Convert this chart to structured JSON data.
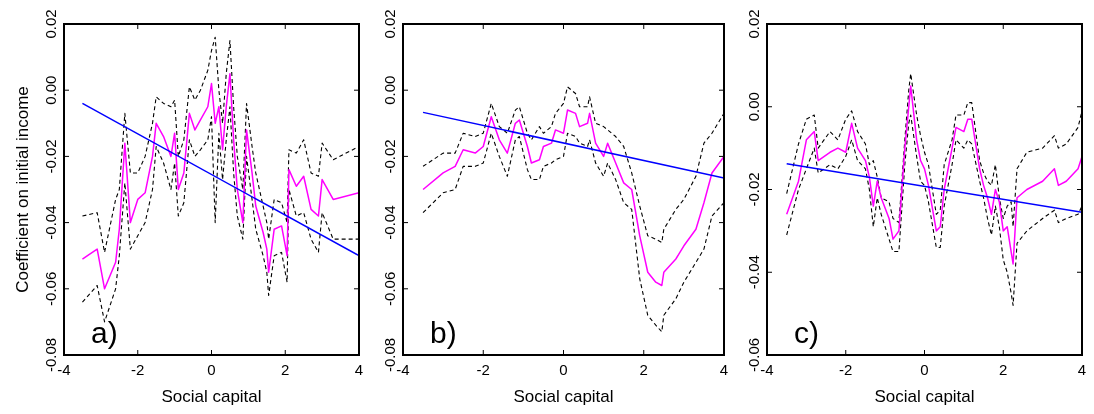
{
  "chart_data": [
    {
      "type": "line",
      "xlabel": "Social capital",
      "ylabel": "Coefficient on initial income",
      "xlim": [
        -4,
        4
      ],
      "xticks": [
        -4,
        -2,
        0,
        2,
        4
      ],
      "ylim": [
        -0.08,
        0.02
      ],
      "yticks": [
        {
          "value": -0.08,
          "label": "-0.08"
        },
        {
          "value": -0.06,
          "label": "-0.06"
        },
        {
          "value": -0.04,
          "label": "-0.04"
        },
        {
          "value": -0.02,
          "label": "-0.02"
        },
        {
          "value": 0,
          "label": "0.00"
        },
        {
          "value": 0.02,
          "label": "0.02"
        }
      ],
      "annotations": [
        "a)"
      ],
      "series": [
        {
          "color": "#000000",
          "line_style": "dashed",
          "x": [
            -3.5,
            -3.1,
            -2.9,
            -2.6,
            -2.5,
            -2.35,
            -2.2,
            -2.0,
            -1.8,
            -1.6,
            -1.5,
            -1.3,
            -1.1,
            -1.0,
            -0.9,
            -0.75,
            -0.6,
            -0.45,
            -0.3,
            -0.1,
            0.0,
            0.1,
            0.2,
            0.3,
            0.4,
            0.5,
            0.6,
            0.7,
            0.85,
            0.95,
            1.1,
            1.2,
            1.4,
            1.5,
            1.55,
            1.7,
            1.9,
            2.05,
            2.1,
            2.3,
            2.5,
            2.7,
            2.9,
            3.0,
            3.3,
            4.0
          ],
          "values": [
            -0.038,
            -0.037,
            -0.049,
            -0.033,
            -0.03,
            -0.007,
            -0.025,
            -0.025,
            -0.02,
            -0.01,
            -0.002,
            -0.004,
            -0.005,
            -0.003,
            -0.02,
            -0.015,
            0.001,
            -0.003,
            0.0,
            0.006,
            0.012,
            0.016,
            0.0,
            -0.01,
            0.005,
            0.015,
            -0.005,
            -0.02,
            -0.03,
            -0.004,
            -0.017,
            -0.025,
            -0.035,
            -0.04,
            -0.045,
            -0.033,
            -0.034,
            -0.04,
            -0.018,
            -0.019,
            -0.015,
            -0.025,
            -0.026,
            -0.016,
            -0.021,
            -0.017
          ]
        },
        {
          "color": "#000000",
          "line_style": "dashed",
          "x": [
            -3.5,
            -3.1,
            -2.9,
            -2.6,
            -2.5,
            -2.35,
            -2.2,
            -2.0,
            -1.8,
            -1.6,
            -1.5,
            -1.3,
            -1.1,
            -1.0,
            -0.9,
            -0.75,
            -0.6,
            -0.45,
            -0.3,
            -0.1,
            0.0,
            0.1,
            0.2,
            0.3,
            0.4,
            0.5,
            0.6,
            0.7,
            0.85,
            0.95,
            1.1,
            1.2,
            1.4,
            1.5,
            1.55,
            1.7,
            1.9,
            2.05,
            2.1,
            2.3,
            2.5,
            2.7,
            2.9,
            3.0,
            3.3,
            4.0
          ],
          "values": [
            -0.064,
            -0.059,
            -0.07,
            -0.06,
            -0.05,
            -0.028,
            -0.048,
            -0.044,
            -0.04,
            -0.03,
            -0.017,
            -0.022,
            -0.03,
            -0.022,
            -0.038,
            -0.034,
            -0.015,
            -0.02,
            -0.018,
            -0.015,
            -0.008,
            -0.04,
            -0.013,
            -0.027,
            -0.015,
            -0.005,
            -0.025,
            -0.038,
            -0.045,
            -0.02,
            -0.033,
            -0.042,
            -0.05,
            -0.055,
            -0.062,
            -0.05,
            -0.049,
            -0.058,
            -0.03,
            -0.038,
            -0.037,
            -0.045,
            -0.049,
            -0.037,
            -0.045,
            -0.045
          ]
        },
        {
          "color": "#ff00ff",
          "line_style": "solid",
          "x": [
            -3.5,
            -3.1,
            -2.9,
            -2.6,
            -2.5,
            -2.35,
            -2.2,
            -2.0,
            -1.8,
            -1.6,
            -1.5,
            -1.3,
            -1.1,
            -1.0,
            -0.9,
            -0.75,
            -0.6,
            -0.45,
            -0.3,
            -0.1,
            0.0,
            0.1,
            0.2,
            0.3,
            0.4,
            0.5,
            0.6,
            0.7,
            0.85,
            0.95,
            1.1,
            1.2,
            1.4,
            1.5,
            1.55,
            1.7,
            1.9,
            2.05,
            2.1,
            2.3,
            2.5,
            2.7,
            2.9,
            3.0,
            3.3,
            4.0
          ],
          "values": [
            -0.051,
            -0.048,
            -0.06,
            -0.052,
            -0.042,
            -0.016,
            -0.04,
            -0.033,
            -0.031,
            -0.02,
            -0.01,
            -0.014,
            -0.02,
            -0.013,
            -0.03,
            -0.025,
            -0.007,
            -0.012,
            -0.009,
            -0.005,
            0.002,
            -0.01,
            -0.005,
            -0.018,
            -0.005,
            0.005,
            -0.015,
            -0.03,
            -0.04,
            -0.012,
            -0.025,
            -0.035,
            -0.043,
            -0.048,
            -0.055,
            -0.042,
            -0.041,
            -0.05,
            -0.024,
            -0.029,
            -0.026,
            -0.036,
            -0.038,
            -0.027,
            -0.033,
            -0.031
          ]
        },
        {
          "color": "#0000ff",
          "line_style": "solid",
          "x": [
            -3.5,
            4
          ],
          "values": [
            -0.004,
            -0.05
          ]
        }
      ]
    },
    {
      "type": "line",
      "xlabel": "Social capital",
      "xlim": [
        -4,
        4
      ],
      "xticks": [
        -4,
        -2,
        0,
        2,
        4
      ],
      "ylim": [
        -0.08,
        0.02
      ],
      "yticks": [
        {
          "value": -0.08,
          "label": "-0.08"
        },
        {
          "value": -0.06,
          "label": "-0.06"
        },
        {
          "value": -0.04,
          "label": "-0.04"
        },
        {
          "value": -0.02,
          "label": "-0.02"
        },
        {
          "value": 0,
          "label": "0.00"
        },
        {
          "value": 0.02,
          "label": "0.02"
        }
      ],
      "annotations": [
        "b)"
      ],
      "series": [
        {
          "color": "#000000",
          "line_style": "dashed",
          "x": [
            -3.5,
            -3.0,
            -2.7,
            -2.5,
            -2.2,
            -2.0,
            -1.8,
            -1.6,
            -1.4,
            -1.2,
            -1.1,
            -0.9,
            -0.8,
            -0.6,
            -0.5,
            -0.3,
            -0.2,
            0.0,
            0.1,
            0.3,
            0.4,
            0.6,
            0.65,
            0.8,
            1.0,
            1.1,
            1.3,
            1.5,
            1.7,
            1.9,
            2.1,
            2.3,
            2.45,
            2.5,
            2.8,
            3.0,
            3.3,
            3.5,
            3.7,
            4.0
          ],
          "values": [
            -0.023,
            -0.019,
            -0.019,
            -0.013,
            -0.014,
            -0.013,
            -0.004,
            -0.011,
            -0.013,
            -0.006,
            -0.005,
            -0.013,
            -0.015,
            -0.011,
            -0.013,
            -0.011,
            -0.007,
            -0.004,
            0.001,
            -0.001,
            -0.005,
            -0.005,
            -0.002,
            -0.01,
            -0.011,
            -0.012,
            -0.014,
            -0.017,
            -0.025,
            -0.035,
            -0.044,
            -0.045,
            -0.046,
            -0.042,
            -0.036,
            -0.033,
            -0.026,
            -0.016,
            -0.013,
            -0.007
          ]
        },
        {
          "color": "#000000",
          "line_style": "dashed",
          "x": [
            -3.5,
            -3.0,
            -2.7,
            -2.5,
            -2.2,
            -2.0,
            -1.8,
            -1.6,
            -1.4,
            -1.2,
            -1.1,
            -0.9,
            -0.8,
            -0.6,
            -0.5,
            -0.3,
            -0.2,
            0.0,
            0.1,
            0.3,
            0.4,
            0.6,
            0.65,
            0.8,
            1.0,
            1.1,
            1.3,
            1.5,
            1.7,
            1.9,
            2.1,
            2.3,
            2.45,
            2.5,
            2.8,
            3.0,
            3.3,
            3.5,
            3.7,
            4.0
          ],
          "values": [
            -0.037,
            -0.031,
            -0.03,
            -0.023,
            -0.023,
            -0.022,
            -0.013,
            -0.02,
            -0.026,
            -0.015,
            -0.014,
            -0.024,
            -0.027,
            -0.027,
            -0.023,
            -0.022,
            -0.021,
            -0.02,
            -0.013,
            -0.014,
            -0.016,
            -0.017,
            -0.015,
            -0.022,
            -0.026,
            -0.022,
            -0.027,
            -0.034,
            -0.036,
            -0.057,
            -0.068,
            -0.071,
            -0.073,
            -0.068,
            -0.063,
            -0.058,
            -0.052,
            -0.048,
            -0.038,
            -0.034
          ]
        },
        {
          "color": "#ff00ff",
          "line_style": "solid",
          "x": [
            -3.5,
            -3.0,
            -2.7,
            -2.5,
            -2.2,
            -2.0,
            -1.8,
            -1.6,
            -1.4,
            -1.2,
            -1.1,
            -0.9,
            -0.8,
            -0.6,
            -0.5,
            -0.3,
            -0.2,
            0.0,
            0.1,
            0.3,
            0.4,
            0.6,
            0.65,
            0.8,
            1.0,
            1.1,
            1.3,
            1.5,
            1.7,
            1.9,
            2.1,
            2.3,
            2.45,
            2.5,
            2.8,
            3.0,
            3.3,
            3.5,
            3.7,
            4.0
          ],
          "values": [
            -0.03,
            -0.025,
            -0.023,
            -0.018,
            -0.019,
            -0.017,
            -0.008,
            -0.015,
            -0.019,
            -0.01,
            -0.009,
            -0.017,
            -0.022,
            -0.021,
            -0.017,
            -0.016,
            -0.012,
            -0.013,
            -0.006,
            -0.007,
            -0.011,
            -0.01,
            -0.007,
            -0.016,
            -0.02,
            -0.016,
            -0.022,
            -0.028,
            -0.03,
            -0.044,
            -0.055,
            -0.058,
            -0.059,
            -0.055,
            -0.051,
            -0.047,
            -0.042,
            -0.034,
            -0.025,
            -0.02
          ]
        },
        {
          "color": "#0000ff",
          "line_style": "solid",
          "x": [
            -3.5,
            4
          ],
          "values": [
            -0.0067,
            -0.0265
          ]
        }
      ]
    },
    {
      "type": "line",
      "xlabel": "Social capital",
      "xlim": [
        -4,
        4
      ],
      "xticks": [
        -4,
        -2,
        0,
        2,
        4
      ],
      "ylim": [
        -0.06,
        0.02
      ],
      "yticks": [
        {
          "value": -0.06,
          "label": "-0.06"
        },
        {
          "value": -0.04,
          "label": "-0.04"
        },
        {
          "value": -0.02,
          "label": "-0.02"
        },
        {
          "value": 0,
          "label": "0.00"
        },
        {
          "value": 0.02,
          "label": "0.02"
        }
      ],
      "annotations": [
        "c)"
      ],
      "series": [
        {
          "color": "#000000",
          "line_style": "dashed",
          "x": [
            -3.5,
            -3.2,
            -3.0,
            -2.8,
            -2.7,
            -2.4,
            -2.2,
            -2.0,
            -1.85,
            -1.7,
            -1.5,
            -1.4,
            -1.3,
            -1.2,
            -1.1,
            -0.9,
            -0.8,
            -0.65,
            -0.5,
            -0.4,
            -0.35,
            -0.2,
            -0.1,
            0.0,
            0.1,
            0.3,
            0.4,
            0.5,
            0.7,
            0.8,
            1.0,
            1.1,
            1.2,
            1.4,
            1.5,
            1.6,
            1.7,
            1.8,
            1.9,
            2.0,
            2.1,
            2.2,
            2.25,
            2.35,
            2.6,
            3.0,
            3.3,
            3.4,
            3.6,
            3.9,
            4.0
          ],
          "values": [
            -0.021,
            -0.009,
            -0.003,
            -0.002,
            -0.01,
            -0.006,
            -0.008,
            -0.003,
            -0.001,
            -0.006,
            -0.009,
            -0.014,
            -0.013,
            -0.017,
            -0.022,
            -0.023,
            -0.027,
            -0.028,
            -0.008,
            0.004,
            0.008,
            -0.002,
            -0.007,
            -0.011,
            -0.014,
            -0.026,
            -0.025,
            -0.014,
            -0.008,
            -0.002,
            -0.002,
            0.001,
            0.001,
            -0.013,
            -0.016,
            -0.018,
            -0.019,
            -0.014,
            -0.022,
            -0.027,
            -0.024,
            -0.023,
            -0.029,
            -0.015,
            -0.011,
            -0.01,
            -0.007,
            -0.01,
            -0.009,
            -0.005,
            -0.001
          ]
        },
        {
          "color": "#000000",
          "line_style": "dashed",
          "x": [
            -3.5,
            -3.2,
            -3.0,
            -2.8,
            -2.7,
            -2.4,
            -2.2,
            -2.0,
            -1.85,
            -1.7,
            -1.5,
            -1.4,
            -1.3,
            -1.2,
            -1.1,
            -0.9,
            -0.8,
            -0.65,
            -0.5,
            -0.4,
            -0.35,
            -0.2,
            -0.1,
            0.0,
            0.1,
            0.3,
            0.4,
            0.5,
            0.7,
            0.8,
            1.0,
            1.1,
            1.2,
            1.4,
            1.5,
            1.6,
            1.7,
            1.8,
            1.9,
            2.0,
            2.1,
            2.2,
            2.25,
            2.35,
            2.6,
            3.0,
            3.3,
            3.4,
            3.6,
            3.9,
            4.0
          ],
          "values": [
            -0.031,
            -0.02,
            -0.015,
            -0.01,
            -0.016,
            -0.014,
            -0.015,
            -0.012,
            -0.008,
            -0.013,
            -0.015,
            -0.02,
            -0.029,
            -0.022,
            -0.026,
            -0.032,
            -0.035,
            -0.035,
            -0.014,
            -0.004,
            -0.002,
            -0.012,
            -0.018,
            -0.019,
            -0.023,
            -0.034,
            -0.034,
            -0.024,
            -0.014,
            -0.008,
            -0.01,
            -0.008,
            -0.009,
            -0.018,
            -0.022,
            -0.027,
            -0.031,
            -0.024,
            -0.029,
            -0.037,
            -0.04,
            -0.045,
            -0.048,
            -0.033,
            -0.03,
            -0.027,
            -0.025,
            -0.028,
            -0.027,
            -0.026,
            -0.024
          ]
        },
        {
          "color": "#ff00ff",
          "line_style": "solid",
          "x": [
            -3.5,
            -3.2,
            -3.0,
            -2.8,
            -2.7,
            -2.4,
            -2.2,
            -2.0,
            -1.85,
            -1.7,
            -1.5,
            -1.4,
            -1.3,
            -1.2,
            -1.1,
            -0.9,
            -0.8,
            -0.65,
            -0.5,
            -0.4,
            -0.35,
            -0.2,
            -0.1,
            0.0,
            0.1,
            0.3,
            0.4,
            0.5,
            0.7,
            0.8,
            1.0,
            1.1,
            1.2,
            1.4,
            1.5,
            1.6,
            1.7,
            1.8,
            1.9,
            2.0,
            2.1,
            2.2,
            2.25,
            2.35,
            2.6,
            3.0,
            3.3,
            3.4,
            3.6,
            3.9,
            4.0
          ],
          "values": [
            -0.026,
            -0.018,
            -0.008,
            -0.006,
            -0.013,
            -0.011,
            -0.01,
            -0.011,
            -0.004,
            -0.01,
            -0.013,
            -0.017,
            -0.024,
            -0.018,
            -0.022,
            -0.027,
            -0.032,
            -0.03,
            -0.01,
            0.0,
            0.005,
            -0.008,
            -0.013,
            -0.015,
            -0.019,
            -0.03,
            -0.029,
            -0.02,
            -0.01,
            -0.005,
            -0.006,
            -0.003,
            -0.003,
            -0.015,
            -0.019,
            -0.022,
            -0.026,
            -0.02,
            -0.023,
            -0.03,
            -0.029,
            -0.035,
            -0.038,
            -0.022,
            -0.02,
            -0.018,
            -0.015,
            -0.019,
            -0.018,
            -0.015,
            -0.012
          ]
        },
        {
          "color": "#0000ff",
          "line_style": "solid",
          "x": [
            -3.5,
            4
          ],
          "values": [
            -0.0138,
            -0.0255
          ]
        }
      ]
    }
  ]
}
